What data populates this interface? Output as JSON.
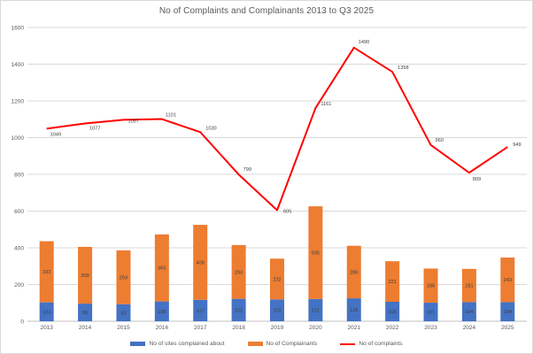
{
  "title": "No of Complaints and Complainants 2013 to Q3 2025",
  "colors": {
    "sites_bar": "#4472C4",
    "complainants_bar": "#ED7D31",
    "complaints_line": "#FF0000",
    "gridline": "#D9D9D9",
    "axis_line": "#BFBFBF",
    "axis_text": "#595959",
    "data_label_text": "#404040"
  },
  "legend": {
    "items": [
      {
        "label": "No of sites complained about",
        "swatch": "bar",
        "color": "#4472C4"
      },
      {
        "label": "No of Complainants",
        "swatch": "bar",
        "color": "#ED7D31"
      },
      {
        "label": "No of complaints",
        "swatch": "line",
        "color": "#FF0000"
      }
    ]
  },
  "chart_data": {
    "type": "combo: stacked bar + line",
    "title": "No of Complaints and Complainants 2013 to Q3 2025",
    "categories": [
      "2013",
      "2014",
      "2015",
      "2016",
      "2017",
      "2018",
      "2019",
      "2020",
      "2021",
      "2022",
      "2023",
      "2024",
      "2025"
    ],
    "series": [
      {
        "name": "No of sites complained about",
        "type": "bar",
        "stacked": true,
        "color": "#4472C4",
        "values": [
          103,
          96,
          93,
          108,
          117,
          122,
          119,
          121,
          125,
          106,
          101,
          104,
          104
        ]
      },
      {
        "name": "No of Complainants",
        "type": "bar",
        "stacked": true,
        "color": "#ED7D31",
        "values": [
          333,
          309,
          293,
          365,
          408,
          293,
          222,
          505,
          286,
          221,
          186,
          181,
          243
        ]
      },
      {
        "name": "No of complaints",
        "type": "line",
        "color": "#FF0000",
        "values": [
          1049,
          1077,
          1097,
          1101,
          1030,
          799,
          605,
          1161,
          1490,
          1358,
          960,
          809,
          949
        ]
      }
    ],
    "xlabel": "",
    "ylabel": "",
    "ylim": [
      0,
      1600
    ],
    "ytick_step": 200,
    "grid": true,
    "legend_position": "bottom",
    "data_labels": true
  }
}
